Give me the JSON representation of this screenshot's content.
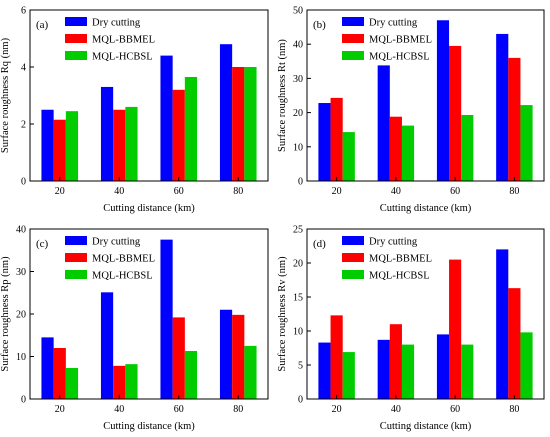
{
  "series_colors": [
    "#0000ff",
    "#ff0000",
    "#00cc00"
  ],
  "chart_data": [
    {
      "type": "bar",
      "panel_label": "(a)",
      "categories": [
        "20",
        "40",
        "60",
        "80"
      ],
      "xlabel": "Cutting distance (km)",
      "ylabel": "Surface roughness Rq (nm)",
      "ylim": [
        0,
        6
      ],
      "yticks": [
        0,
        2,
        4,
        6
      ],
      "legend_position": "top-left",
      "series": [
        {
          "name": "Dry cutting",
          "values": [
            2.5,
            3.3,
            4.4,
            4.8
          ]
        },
        {
          "name": "MQL-BBMEL",
          "values": [
            2.15,
            2.5,
            3.2,
            4.0
          ]
        },
        {
          "name": "MQL-HCBSL",
          "values": [
            2.45,
            2.6,
            3.65,
            4.0
          ]
        }
      ]
    },
    {
      "type": "bar",
      "panel_label": "(b)",
      "categories": [
        "20",
        "40",
        "60",
        "80"
      ],
      "xlabel": "Cutting distance (km)",
      "ylabel": "Surface roughness Rt (nm)",
      "ylim": [
        0,
        50
      ],
      "yticks": [
        0,
        10,
        20,
        30,
        40,
        50
      ],
      "legend_position": "top-left",
      "series": [
        {
          "name": "Dry cutting",
          "values": [
            22.8,
            33.8,
            47,
            43
          ]
        },
        {
          "name": "MQL-BBMEL",
          "values": [
            24.3,
            18.8,
            39.5,
            36
          ]
        },
        {
          "name": "MQL-HCBSL",
          "values": [
            14.3,
            16.2,
            19.3,
            22.2
          ]
        }
      ]
    },
    {
      "type": "bar",
      "panel_label": "(c)",
      "categories": [
        "20",
        "40",
        "60",
        "80"
      ],
      "xlabel": "Cutting distance (km)",
      "ylabel": "Surface roughness Rp (nm)",
      "ylim": [
        0,
        40
      ],
      "yticks": [
        0,
        10,
        20,
        30,
        40
      ],
      "legend_position": "top-left",
      "series": [
        {
          "name": "Dry cutting",
          "values": [
            14.5,
            25.1,
            37.5,
            21
          ]
        },
        {
          "name": "MQL-BBMEL",
          "values": [
            12,
            7.8,
            19.2,
            19.8
          ]
        },
        {
          "name": "MQL-HCBSL",
          "values": [
            7.3,
            8.2,
            11.3,
            12.5
          ]
        }
      ]
    },
    {
      "type": "bar",
      "panel_label": "(d)",
      "categories": [
        "20",
        "40",
        "60",
        "80"
      ],
      "xlabel": "Cutting distance (km)",
      "ylabel": "Surface roughness Rv (nm)",
      "ylim": [
        0,
        25
      ],
      "yticks": [
        0,
        5,
        10,
        15,
        20,
        25
      ],
      "legend_position": "top-left",
      "series": [
        {
          "name": "Dry cutting",
          "values": [
            8.3,
            8.7,
            9.5,
            22
          ]
        },
        {
          "name": "MQL-BBMEL",
          "values": [
            12.3,
            11,
            20.5,
            16.3
          ]
        },
        {
          "name": "MQL-HCBSL",
          "values": [
            6.9,
            8,
            8,
            9.8
          ]
        }
      ]
    }
  ]
}
